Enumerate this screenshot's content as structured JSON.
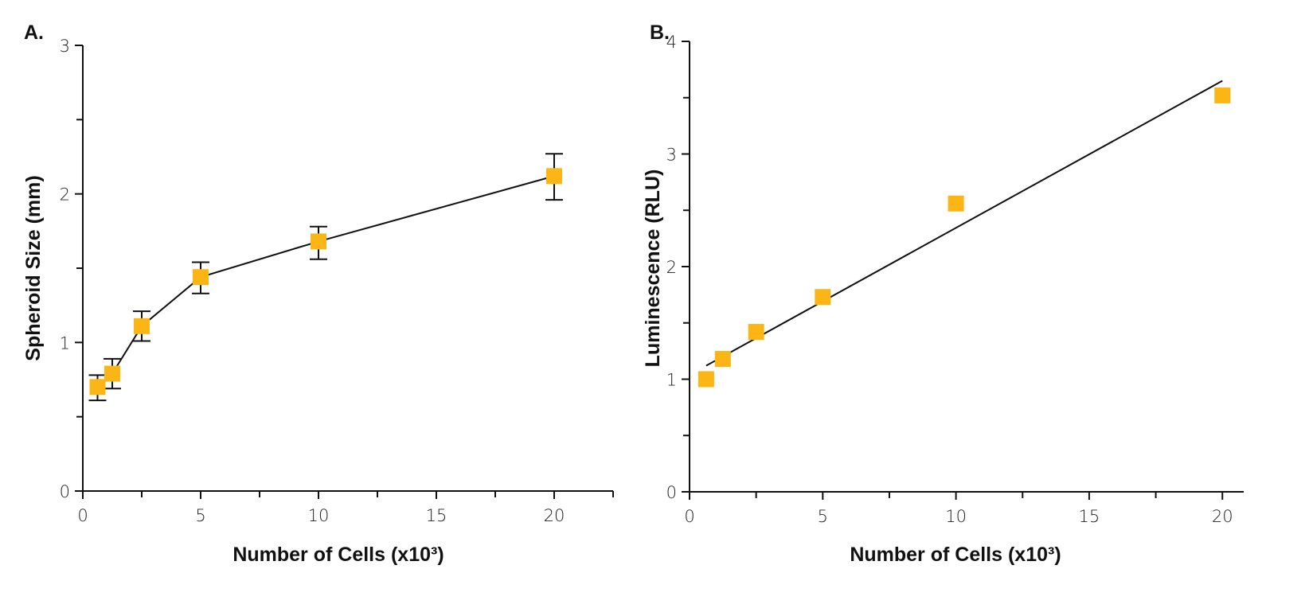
{
  "marker_color": "#FBB615",
  "chart_data": [
    {
      "panel_label": "A.",
      "type": "line",
      "xlabel": "Number of Cells (x10³)",
      "ylabel": "Spheroid Size (mm)",
      "xlim": [
        0,
        22.5
      ],
      "ylim": [
        0,
        3
      ],
      "xticks": [
        0,
        5,
        10,
        15,
        20
      ],
      "yticks": [
        0,
        1,
        2,
        3
      ],
      "grid": false,
      "x": [
        0.625,
        1.25,
        2.5,
        5,
        10,
        20
      ],
      "y": [
        0.7,
        0.79,
        1.11,
        1.44,
        1.68,
        2.12
      ],
      "error_low": [
        0.61,
        0.69,
        1.01,
        1.33,
        1.56,
        1.96
      ],
      "error_high": [
        0.78,
        0.89,
        1.21,
        1.54,
        1.78,
        2.27
      ]
    },
    {
      "panel_label": "B.",
      "type": "scatter",
      "xlabel": "Number of Cells (x10³)",
      "ylabel": "Luminescence (RLU)",
      "xlim": [
        0,
        20.8
      ],
      "ylim": [
        0,
        4
      ],
      "xticks": [
        0,
        5,
        10,
        15,
        20
      ],
      "yticks": [
        0,
        1,
        2,
        3,
        4
      ],
      "grid": false,
      "x": [
        0.625,
        1.25,
        2.5,
        5,
        10,
        20
      ],
      "y": [
        1.0,
        1.18,
        1.42,
        1.73,
        2.56,
        3.52
      ],
      "fit_line": {
        "x": [
          0.625,
          20
        ],
        "y": [
          1.12,
          3.65
        ]
      }
    }
  ]
}
